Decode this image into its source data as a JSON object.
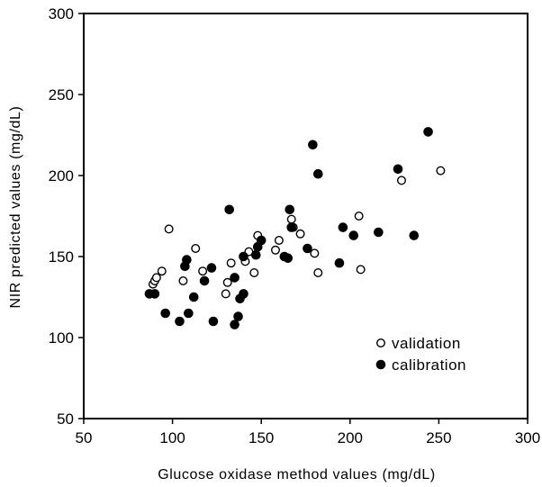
{
  "chart_data": {
    "type": "scatter",
    "title": "",
    "xlabel": "Glucose oxidase method values (mg/dL)",
    "ylabel": "NIR predicted values (mg/dL)",
    "xlim": [
      50,
      300
    ],
    "ylim": [
      50,
      300
    ],
    "xticks": [
      "50",
      "100",
      "150",
      "200",
      "250",
      "300"
    ],
    "yticks": [
      "50",
      "100",
      "150",
      "200",
      "250",
      "300"
    ],
    "grid": false,
    "legend_position": "bottom-right",
    "series": [
      {
        "name": "validation",
        "marker": "open-circle",
        "color": "#000000",
        "points": [
          [
            89,
            133
          ],
          [
            90,
            135
          ],
          [
            91,
            137
          ],
          [
            94,
            141
          ],
          [
            98,
            167
          ],
          [
            106,
            135
          ],
          [
            113,
            155
          ],
          [
            117,
            141
          ],
          [
            130,
            127
          ],
          [
            131,
            134
          ],
          [
            133,
            146
          ],
          [
            141,
            147
          ],
          [
            143,
            153
          ],
          [
            146,
            140
          ],
          [
            148,
            163
          ],
          [
            158,
            154
          ],
          [
            160,
            160
          ],
          [
            167,
            173
          ],
          [
            168,
            168
          ],
          [
            172,
            164
          ],
          [
            180,
            152
          ],
          [
            182,
            140
          ],
          [
            205,
            175
          ],
          [
            206,
            142
          ],
          [
            229,
            197
          ],
          [
            251,
            203
          ]
        ]
      },
      {
        "name": "calibration",
        "marker": "filled-circle",
        "color": "#000000",
        "points": [
          [
            87,
            127
          ],
          [
            90,
            127
          ],
          [
            96,
            115
          ],
          [
            104,
            110
          ],
          [
            107,
            144
          ],
          [
            108,
            148
          ],
          [
            109,
            115
          ],
          [
            112,
            125
          ],
          [
            118,
            135
          ],
          [
            122,
            143
          ],
          [
            123,
            110
          ],
          [
            132,
            179
          ],
          [
            135,
            108
          ],
          [
            135,
            137
          ],
          [
            137,
            113
          ],
          [
            138,
            124
          ],
          [
            140,
            127
          ],
          [
            140,
            150
          ],
          [
            147,
            151
          ],
          [
            148,
            156
          ],
          [
            150,
            160
          ],
          [
            163,
            150
          ],
          [
            165,
            149
          ],
          [
            166,
            179
          ],
          [
            167,
            168
          ],
          [
            176,
            155
          ],
          [
            179,
            219
          ],
          [
            182,
            201
          ],
          [
            194,
            146
          ],
          [
            196,
            168
          ],
          [
            202,
            163
          ],
          [
            216,
            165
          ],
          [
            227,
            204
          ],
          [
            236,
            163
          ],
          [
            244,
            227
          ]
        ]
      }
    ]
  }
}
